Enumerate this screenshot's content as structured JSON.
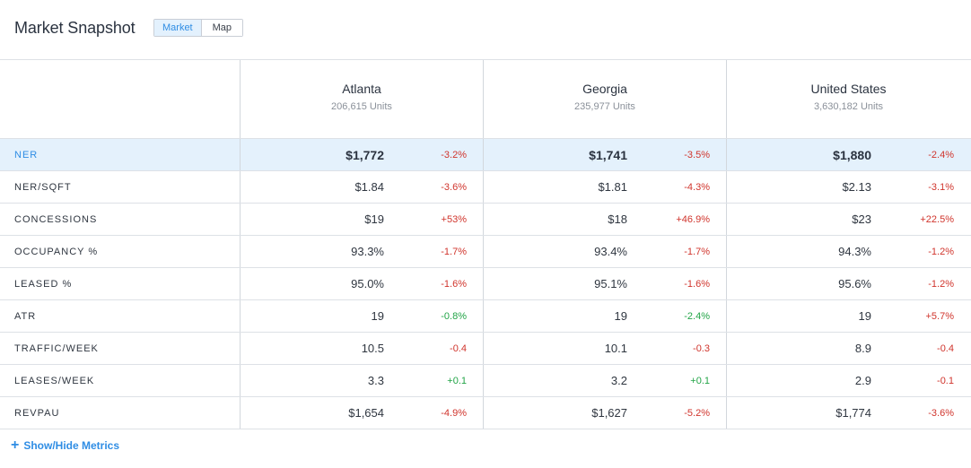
{
  "header": {
    "title": "Market Snapshot",
    "toggle": {
      "market": "Market",
      "map": "Map",
      "selected": "Market"
    }
  },
  "columns": [
    {
      "name": "Atlanta",
      "units": "206,615 Units"
    },
    {
      "name": "Georgia",
      "units": "235,977 Units"
    },
    {
      "name": "United States",
      "units": "3,630,182 Units"
    }
  ],
  "rows": [
    {
      "label": "NER",
      "highlighted": true,
      "cells": [
        {
          "value": "$1,772",
          "change": "-3.2%",
          "trend": "negative"
        },
        {
          "value": "$1,741",
          "change": "-3.5%",
          "trend": "negative"
        },
        {
          "value": "$1,880",
          "change": "-2.4%",
          "trend": "negative"
        }
      ]
    },
    {
      "label": "NER/SQFT",
      "cells": [
        {
          "value": "$1.84",
          "change": "-3.6%",
          "trend": "negative"
        },
        {
          "value": "$1.81",
          "change": "-4.3%",
          "trend": "negative"
        },
        {
          "value": "$2.13",
          "change": "-3.1%",
          "trend": "negative"
        }
      ]
    },
    {
      "label": "CONCESSIONS",
      "cells": [
        {
          "value": "$19",
          "change": "+53%",
          "trend": "negative"
        },
        {
          "value": "$18",
          "change": "+46.9%",
          "trend": "negative"
        },
        {
          "value": "$23",
          "change": "+22.5%",
          "trend": "negative"
        }
      ]
    },
    {
      "label": "OCCUPANCY %",
      "cells": [
        {
          "value": "93.3%",
          "change": "-1.7%",
          "trend": "negative"
        },
        {
          "value": "93.4%",
          "change": "-1.7%",
          "trend": "negative"
        },
        {
          "value": "94.3%",
          "change": "-1.2%",
          "trend": "negative"
        }
      ]
    },
    {
      "label": "LEASED %",
      "cells": [
        {
          "value": "95.0%",
          "change": "-1.6%",
          "trend": "negative"
        },
        {
          "value": "95.1%",
          "change": "-1.6%",
          "trend": "negative"
        },
        {
          "value": "95.6%",
          "change": "-1.2%",
          "trend": "negative"
        }
      ]
    },
    {
      "label": "ATR",
      "cells": [
        {
          "value": "19",
          "change": "-0.8%",
          "trend": "positive"
        },
        {
          "value": "19",
          "change": "-2.4%",
          "trend": "positive"
        },
        {
          "value": "19",
          "change": "+5.7%",
          "trend": "negative"
        }
      ]
    },
    {
      "label": "TRAFFIC/WEEK",
      "cells": [
        {
          "value": "10.5",
          "change": "-0.4",
          "trend": "negative"
        },
        {
          "value": "10.1",
          "change": "-0.3",
          "trend": "negative"
        },
        {
          "value": "8.9",
          "change": "-0.4",
          "trend": "negative"
        }
      ]
    },
    {
      "label": "LEASES/WEEK",
      "cells": [
        {
          "value": "3.3",
          "change": "+0.1",
          "trend": "positive"
        },
        {
          "value": "3.2",
          "change": "+0.1",
          "trend": "positive"
        },
        {
          "value": "2.9",
          "change": "-0.1",
          "trend": "negative"
        }
      ]
    },
    {
      "label": "REVPAU",
      "cells": [
        {
          "value": "$1,654",
          "change": "-4.9%",
          "trend": "negative"
        },
        {
          "value": "$1,627",
          "change": "-5.2%",
          "trend": "negative"
        },
        {
          "value": "$1,774",
          "change": "-3.6%",
          "trend": "negative"
        }
      ]
    }
  ],
  "footer": {
    "icon": "plus-icon",
    "label": "Show/Hide Metrics"
  },
  "colors": {
    "accent": "#2f8de4",
    "negative": "#d0342c",
    "positive": "#22a447",
    "highlight_row": "#e4f1fc"
  }
}
